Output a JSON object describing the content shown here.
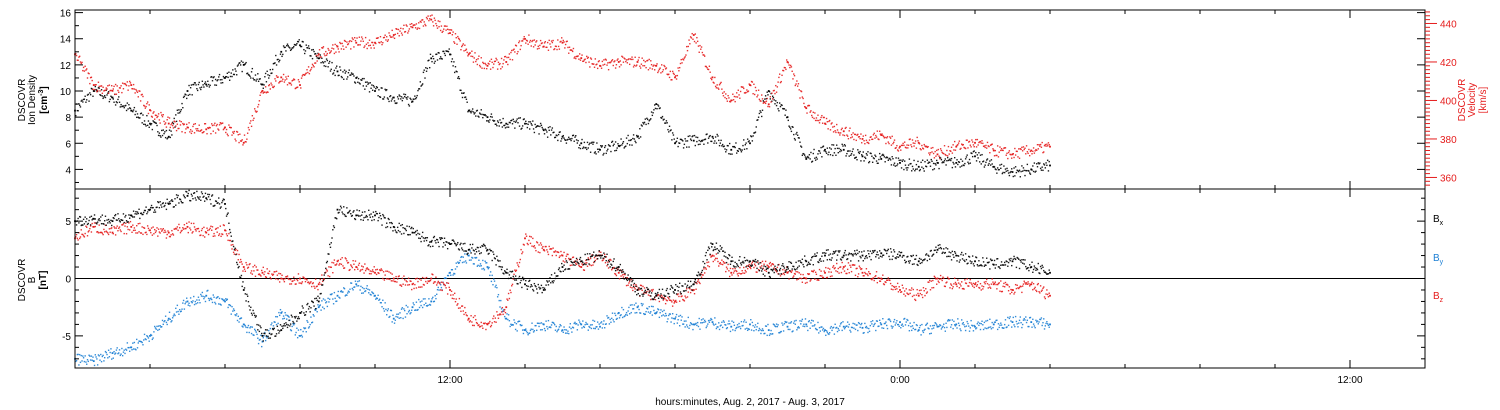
{
  "figure": {
    "xaxis_label": "hours:minutes, Aug.  2, 2017 - Aug.  3, 2017",
    "xticks": [
      {
        "hour": 12,
        "label": "12:00"
      },
      {
        "hour": 24,
        "label": "0:00"
      },
      {
        "hour": 36,
        "label": "12:00"
      }
    ]
  },
  "chart_data": [
    {
      "type": "scatter",
      "title": "",
      "xlabel": "hours:minutes, Aug.  2, 2017 - Aug.  3, 2017",
      "xlim": [
        2,
        38
      ],
      "ylabel_left": [
        "DSCOVR",
        "Ion Density",
        "[cm",
        "-3",
        "]"
      ],
      "ylim_left": [
        2.5,
        16.2
      ],
      "yticks_left": [
        4,
        6,
        8,
        10,
        12,
        14,
        16
      ],
      "ylabel_right": [
        "DSCOVR",
        "Velocity",
        "[km/s]"
      ],
      "ylim_right": [
        354,
        447
      ],
      "yticks_right": [
        360,
        380,
        400,
        420,
        440
      ],
      "series": [
        {
          "axis": "left",
          "color": "#000000",
          "x": [
            2.0,
            2.5,
            3.0,
            3.5,
            4.0,
            4.5,
            5.0,
            5.5,
            6.0,
            6.5,
            7.0,
            7.5,
            8.0,
            8.5,
            9.0,
            9.5,
            10.0,
            10.5,
            11.0,
            11.5,
            12.0,
            12.5,
            13.0,
            13.5,
            14.0,
            14.5,
            15.0,
            15.5,
            16.0,
            16.5,
            17.0,
            17.5,
            18.0,
            18.5,
            19.0,
            19.5,
            20.0,
            20.5,
            21.0,
            21.5,
            22.0,
            22.5,
            23.0,
            23.5,
            24.0,
            24.5,
            25.0,
            25.5,
            26.0,
            26.5,
            27.0,
            27.5,
            28.0
          ],
          "y": [
            8.5,
            10.0,
            9.5,
            8.5,
            7.5,
            6.5,
            10.0,
            10.5,
            11.0,
            12.0,
            10.5,
            13.0,
            13.5,
            12.5,
            11.5,
            11.0,
            10.0,
            9.5,
            9.2,
            12.5,
            12.8,
            8.5,
            8.0,
            7.5,
            7.5,
            7.0,
            6.5,
            6.0,
            5.5,
            5.8,
            6.5,
            9.0,
            6.0,
            6.2,
            6.5,
            5.5,
            6.0,
            10.0,
            8.0,
            4.8,
            5.5,
            5.5,
            5.0,
            4.8,
            4.5,
            4.2,
            4.5,
            4.5,
            5.0,
            4.2,
            3.8,
            4.0,
            4.3
          ]
        },
        {
          "axis": "right",
          "color": "#e51c1c",
          "x": [
            2.0,
            2.5,
            3.0,
            3.5,
            4.0,
            4.5,
            5.0,
            5.5,
            6.0,
            6.5,
            7.0,
            7.5,
            8.0,
            8.5,
            9.0,
            9.5,
            10.0,
            10.5,
            11.0,
            11.5,
            12.0,
            12.5,
            13.0,
            13.5,
            14.0,
            14.5,
            15.0,
            15.5,
            16.0,
            16.5,
            17.0,
            17.5,
            18.0,
            18.5,
            19.0,
            19.5,
            20.0,
            20.5,
            21.0,
            21.5,
            22.0,
            22.5,
            23.0,
            23.5,
            24.0,
            24.5,
            25.0,
            25.5,
            26.0,
            26.5,
            27.0,
            27.5,
            28.0
          ],
          "y": [
            424,
            408,
            405,
            408,
            395,
            388,
            386,
            385,
            386,
            378,
            405,
            412,
            408,
            424,
            428,
            430,
            430,
            434,
            438,
            442,
            435,
            424,
            418,
            420,
            432,
            428,
            430,
            422,
            418,
            420,
            420,
            418,
            412,
            434,
            412,
            400,
            408,
            398,
            420,
            396,
            388,
            384,
            380,
            382,
            376,
            378,
            372,
            376,
            378,
            374,
            372,
            374,
            376
          ]
        }
      ]
    },
    {
      "type": "scatter",
      "title": "",
      "xlabel": "hours:minutes, Aug.  2, 2017 - Aug.  3, 2017",
      "xlim": [
        2,
        38
      ],
      "ylabel_left": [
        "DSCOVR",
        "B",
        "[nT]"
      ],
      "ylim": [
        -7.8,
        7.8
      ],
      "yticks": [
        -5,
        0,
        5
      ],
      "zero_line": true,
      "legend_placement": "right",
      "series": [
        {
          "name": "Bx",
          "legend_main": "B",
          "legend_sub": "x",
          "color": "#000000",
          "x": [
            2.0,
            2.5,
            3.0,
            3.5,
            4.0,
            4.5,
            5.0,
            5.5,
            6.0,
            6.5,
            7.0,
            7.5,
            8.0,
            8.5,
            9.0,
            9.5,
            10.0,
            10.5,
            11.0,
            11.5,
            12.0,
            12.5,
            13.0,
            13.5,
            14.0,
            14.5,
            15.0,
            15.5,
            16.0,
            16.5,
            17.0,
            17.5,
            18.0,
            18.5,
            19.0,
            19.5,
            20.0,
            20.5,
            21.0,
            21.5,
            22.0,
            22.5,
            23.0,
            23.5,
            24.0,
            24.5,
            25.0,
            25.5,
            26.0,
            26.5,
            27.0,
            27.5,
            28.0
          ],
          "y": [
            5.0,
            5.2,
            5.0,
            5.5,
            6.0,
            6.5,
            7.2,
            7.0,
            6.5,
            -1.0,
            -5.0,
            -4.5,
            -3.0,
            -2.0,
            6.0,
            5.5,
            5.5,
            4.5,
            4.0,
            3.2,
            3.0,
            2.5,
            2.5,
            0.5,
            -0.5,
            -1.0,
            1.0,
            1.5,
            2.0,
            1.0,
            -1.0,
            -1.5,
            -1.0,
            -0.5,
            3.0,
            1.5,
            1.5,
            0.5,
            1.0,
            1.5,
            2.0,
            2.0,
            2.0,
            2.2,
            2.0,
            1.5,
            2.5,
            2.0,
            1.5,
            1.2,
            1.5,
            1.0,
            0.5
          ]
        },
        {
          "name": "By",
          "legend_main": "B",
          "legend_sub": "y",
          "color": "#1c7fd4",
          "x": [
            2.0,
            2.5,
            3.0,
            3.5,
            4.0,
            4.5,
            5.0,
            5.5,
            6.0,
            6.5,
            7.0,
            7.5,
            8.0,
            8.5,
            9.0,
            9.5,
            10.0,
            10.5,
            11.0,
            11.5,
            12.0,
            12.5,
            13.0,
            13.5,
            14.0,
            14.5,
            15.0,
            15.5,
            16.0,
            16.5,
            17.0,
            17.5,
            18.0,
            18.5,
            19.0,
            19.5,
            20.0,
            20.5,
            21.0,
            21.5,
            22.0,
            22.5,
            23.0,
            23.5,
            24.0,
            24.5,
            25.0,
            25.5,
            26.0,
            26.5,
            27.0,
            27.5,
            28.0
          ],
          "y": [
            -7.0,
            -7.2,
            -6.5,
            -6.0,
            -5.0,
            -3.5,
            -2.0,
            -1.5,
            -2.0,
            -4.0,
            -5.5,
            -3.0,
            -5.0,
            -2.5,
            -1.5,
            -0.5,
            -1.5,
            -3.5,
            -2.5,
            -2.0,
            0.5,
            2.0,
            1.0,
            -3.5,
            -4.5,
            -4.0,
            -4.5,
            -4.0,
            -4.2,
            -3.0,
            -2.5,
            -3.0,
            -3.5,
            -4.0,
            -3.8,
            -4.2,
            -4.0,
            -4.5,
            -4.2,
            -4.0,
            -4.5,
            -4.2,
            -4.3,
            -4.0,
            -3.8,
            -4.5,
            -4.2,
            -4.0,
            -4.2,
            -4.0,
            -3.8,
            -3.8,
            -4.0
          ]
        },
        {
          "name": "Bz",
          "legend_main": "B",
          "legend_sub": "z",
          "color": "#e51c1c",
          "x": [
            2.0,
            2.5,
            3.0,
            3.5,
            4.0,
            4.5,
            5.0,
            5.5,
            6.0,
            6.5,
            7.0,
            7.5,
            8.0,
            8.5,
            9.0,
            9.5,
            10.0,
            10.5,
            11.0,
            11.5,
            12.0,
            12.5,
            13.0,
            13.5,
            14.0,
            14.5,
            15.0,
            15.5,
            16.0,
            16.5,
            17.0,
            17.5,
            18.0,
            18.5,
            19.0,
            19.5,
            20.0,
            20.5,
            21.0,
            21.5,
            22.0,
            22.5,
            23.0,
            23.5,
            24.0,
            24.5,
            25.0,
            25.5,
            26.0,
            26.5,
            27.0,
            27.5,
            28.0
          ],
          "y": [
            3.5,
            4.5,
            4.0,
            4.5,
            4.2,
            4.0,
            4.5,
            4.0,
            4.2,
            1.0,
            0.5,
            0.0,
            0.0,
            -0.5,
            1.5,
            1.0,
            0.5,
            0.0,
            -0.5,
            0.0,
            -1.0,
            -3.5,
            -4.0,
            -2.5,
            3.5,
            2.5,
            2.0,
            1.0,
            2.0,
            0.5,
            -1.0,
            -1.5,
            -2.0,
            -1.0,
            2.0,
            0.5,
            1.0,
            1.0,
            0.5,
            0.0,
            0.5,
            1.0,
            0.5,
            0.0,
            -1.0,
            -1.5,
            0.0,
            -0.5,
            -0.5,
            -0.5,
            -1.0,
            -0.5,
            -1.5
          ]
        }
      ]
    }
  ]
}
